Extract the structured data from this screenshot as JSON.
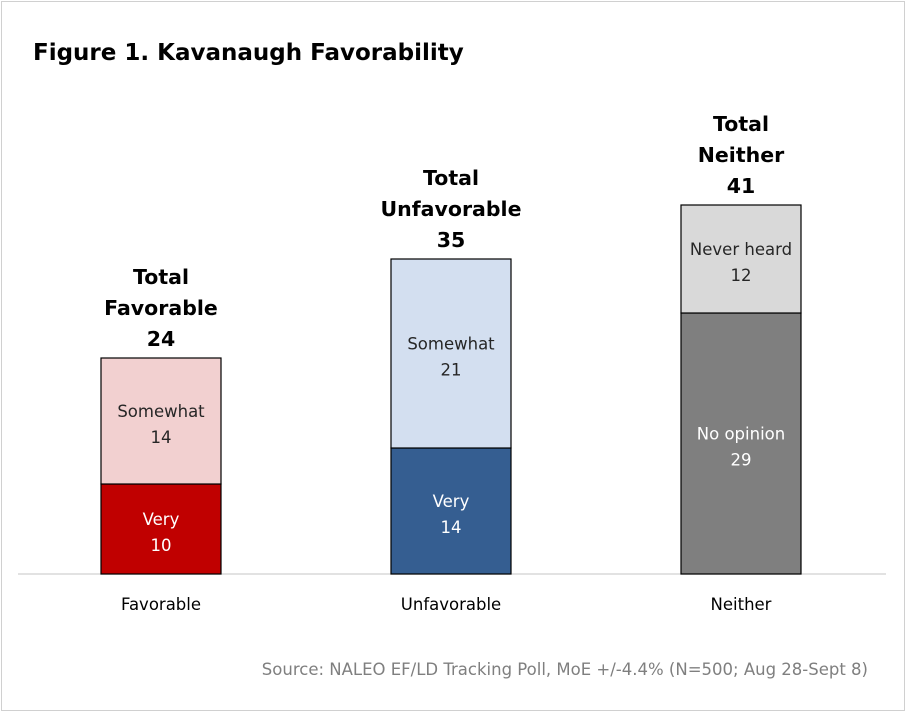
{
  "title": "Figure 1. Kavanaugh Favorability",
  "source": "Source: NALEO EF/LD Tracking Poll, MoE +/-4.4% (N=500; Aug 28-Sept 8)",
  "chart_data": {
    "type": "bar",
    "stacked": true,
    "categories": [
      "Favorable",
      "Unfavorable",
      "Neither"
    ],
    "ylim": [
      0,
      45
    ],
    "grid": false,
    "legend": "none",
    "groups": [
      {
        "category": "Favorable",
        "total_label": [
          "Total",
          "Favorable",
          "24"
        ],
        "total": 24,
        "segments": [
          {
            "name": "Very",
            "value": 10,
            "fill": "#c00000",
            "text_color": "#ffffff"
          },
          {
            "name": "Somewhat",
            "value": 14,
            "fill": "#f2d0d0",
            "text_color": "#262626"
          }
        ]
      },
      {
        "category": "Unfavorable",
        "total_label": [
          "Total",
          "Unfavorable",
          "35"
        ],
        "total": 35,
        "segments": [
          {
            "name": "Very",
            "value": 14,
            "fill": "#355e91",
            "text_color": "#ffffff"
          },
          {
            "name": "Somewhat",
            "value": 21,
            "fill": "#d3dff0",
            "text_color": "#262626"
          }
        ]
      },
      {
        "category": "Neither",
        "total_label": [
          "Total",
          "Neither",
          "41"
        ],
        "total": 41,
        "segments": [
          {
            "name": "No opinion",
            "value": 29,
            "fill": "#7f7f7f",
            "text_color": "#ffffff"
          },
          {
            "name": "Never heard",
            "value": 12,
            "fill": "#d9d9d9",
            "text_color": "#262626"
          }
        ]
      }
    ]
  }
}
